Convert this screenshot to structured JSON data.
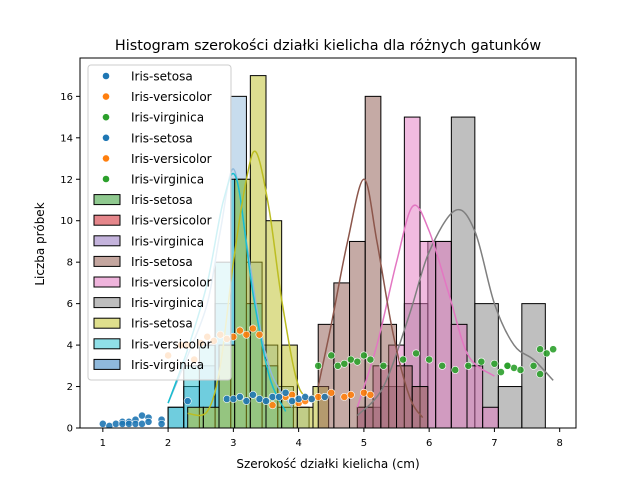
{
  "chart_data": {
    "type": "bar",
    "title": "Histogram szerokości działki kielicha dla różnych gatunków",
    "xlabel": "Szerokość działki kielicha (cm)",
    "ylabel": "Liczba próbek",
    "xlim": [
      0.65,
      8.25
    ],
    "ylim": [
      0,
      17.85
    ],
    "xticks": [
      1,
      2,
      3,
      4,
      5,
      6,
      7,
      8
    ],
    "yticks": [
      0,
      2,
      4,
      6,
      8,
      10,
      12,
      14,
      16
    ],
    "grid": false,
    "legend_position": "top-left",
    "legend": [
      {
        "label": "Iris-setosa",
        "kind": "point",
        "color": "#1f77b4"
      },
      {
        "label": "Iris-versicolor",
        "kind": "point",
        "color": "#ff7f0e"
      },
      {
        "label": "Iris-virginica",
        "kind": "point",
        "color": "#2ca02c"
      },
      {
        "label": "Iris-setosa",
        "kind": "point",
        "color": "#1f77b4"
      },
      {
        "label": "Iris-versicolor",
        "kind": "point",
        "color": "#ff7f0e"
      },
      {
        "label": "Iris-virginica",
        "kind": "point",
        "color": "#2ca02c"
      },
      {
        "label": "Iris-setosa",
        "kind": "patch",
        "color": "#8fc98f"
      },
      {
        "label": "Iris-versicolor",
        "kind": "patch",
        "color": "#e5868b"
      },
      {
        "label": "Iris-virginica",
        "kind": "patch",
        "color": "#c4b3dc"
      },
      {
        "label": "Iris-setosa",
        "kind": "patch",
        "color": "#c4a69f"
      },
      {
        "label": "Iris-versicolor",
        "kind": "patch",
        "color": "#efb4dc"
      },
      {
        "label": "Iris-virginica",
        "kind": "patch",
        "color": "#bdbdbd"
      },
      {
        "label": "Iris-setosa",
        "kind": "patch",
        "color": "#dfdf8d"
      },
      {
        "label": "Iris-versicolor",
        "kind": "patch",
        "color": "#8fdfe8"
      },
      {
        "label": "Iris-virginica",
        "kind": "patch",
        "color": "#8fb9dc"
      }
    ],
    "histograms": [
      {
        "name": "Iris-virginica",
        "color": "#8fb9dc",
        "bin_width": 0.24,
        "bins": [
          {
            "x0": 2.0,
            "count": 1
          },
          {
            "x0": 2.24,
            "count": 2
          },
          {
            "x0": 2.48,
            "count": 3
          },
          {
            "x0": 2.72,
            "count": 6
          },
          {
            "x0": 2.96,
            "count": 16
          },
          {
            "x0": 3.2,
            "count": 8
          },
          {
            "x0": 3.44,
            "count": 4
          },
          {
            "x0": 3.68,
            "count": 2
          },
          {
            "x0": 3.92,
            "count": 1
          }
        ],
        "kde": [
          [
            2.0,
            1.2
          ],
          [
            2.3,
            3.5
          ],
          [
            2.6,
            6.0
          ],
          [
            2.8,
            9.5
          ],
          [
            3.0,
            12.5
          ],
          [
            3.2,
            9.0
          ],
          [
            3.4,
            5.0
          ],
          [
            3.6,
            2.5
          ],
          [
            3.9,
            1.0
          ]
        ]
      },
      {
        "name": "Iris-versicolor",
        "color": "#17becf",
        "bin_width": 0.24,
        "bins": [
          {
            "x0": 2.0,
            "count": 1
          },
          {
            "x0": 2.24,
            "count": 3
          },
          {
            "x0": 2.48,
            "count": 4
          },
          {
            "x0": 2.72,
            "count": 8
          },
          {
            "x0": 2.96,
            "count": 12
          },
          {
            "x0": 3.2,
            "count": 6
          },
          {
            "x0": 3.44,
            "count": 3
          },
          {
            "x0": 3.68,
            "count": 1
          }
        ],
        "kde": [
          [
            2.0,
            1.2
          ],
          [
            2.3,
            3.8
          ],
          [
            2.6,
            7.0
          ],
          [
            2.85,
            11.0
          ],
          [
            3.05,
            12.0
          ],
          [
            3.3,
            6.5
          ],
          [
            3.55,
            2.5
          ],
          [
            3.8,
            0.8
          ]
        ]
      },
      {
        "name": "Iris-setosa",
        "color": "#bcbd22",
        "bin_width": 0.24,
        "bins": [
          {
            "x0": 2.3,
            "count": 1
          },
          {
            "x0": 2.54,
            "count": 1
          },
          {
            "x0": 2.78,
            "count": 4
          },
          {
            "x0": 3.02,
            "count": 12
          },
          {
            "x0": 3.26,
            "count": 17
          },
          {
            "x0": 3.5,
            "count": 10
          },
          {
            "x0": 3.74,
            "count": 4
          },
          {
            "x0": 3.98,
            "count": 1
          },
          {
            "x0": 4.22,
            "count": 2
          }
        ],
        "kde": [
          [
            2.3,
            0.7
          ],
          [
            2.6,
            0.8
          ],
          [
            2.8,
            3.0
          ],
          [
            3.0,
            8.0
          ],
          [
            3.2,
            12.0
          ],
          [
            3.35,
            13.3
          ],
          [
            3.55,
            10.5
          ],
          [
            3.75,
            6.0
          ],
          [
            4.0,
            2.0
          ],
          [
            4.25,
            1.5
          ]
        ]
      },
      {
        "name": "Iris-virginica",
        "color": "#7f7f7f",
        "bin_width": 0.36,
        "bins": [
          {
            "x0": 4.9,
            "count": 1
          },
          {
            "x0": 5.26,
            "count": 2
          },
          {
            "x0": 5.62,
            "count": 6
          },
          {
            "x0": 5.98,
            "count": 9
          },
          {
            "x0": 6.34,
            "count": 15
          },
          {
            "x0": 6.7,
            "count": 6
          },
          {
            "x0": 7.06,
            "count": 2
          },
          {
            "x0": 7.42,
            "count": 6
          }
        ],
        "kde": [
          [
            4.9,
            0.6
          ],
          [
            5.3,
            2.0
          ],
          [
            5.7,
            5.5
          ],
          [
            6.0,
            8.5
          ],
          [
            6.4,
            10.5
          ],
          [
            6.7,
            9.5
          ],
          [
            7.0,
            6.0
          ],
          [
            7.3,
            4.0
          ],
          [
            7.6,
            3.3
          ],
          [
            7.9,
            2.3
          ]
        ]
      },
      {
        "name": "Iris-versicolor",
        "color": "#e377c2",
        "bin_width": 0.24,
        "bins": [
          {
            "x0": 4.9,
            "count": 1
          },
          {
            "x0": 5.14,
            "count": 3
          },
          {
            "x0": 5.38,
            "count": 4
          },
          {
            "x0": 5.62,
            "count": 15
          },
          {
            "x0": 5.86,
            "count": 9
          },
          {
            "x0": 6.1,
            "count": 9
          },
          {
            "x0": 6.34,
            "count": 5
          },
          {
            "x0": 6.58,
            "count": 3
          },
          {
            "x0": 6.82,
            "count": 1
          }
        ],
        "kde": [
          [
            4.9,
            1.0
          ],
          [
            5.2,
            4.0
          ],
          [
            5.5,
            8.0
          ],
          [
            5.75,
            10.7
          ],
          [
            6.0,
            9.5
          ],
          [
            6.3,
            6.5
          ],
          [
            6.6,
            3.5
          ],
          [
            7.0,
            2.5
          ]
        ]
      },
      {
        "name": "Iris-setosa",
        "color": "#8c564b",
        "bin_width": 0.24,
        "bins": [
          {
            "x0": 4.3,
            "count": 5
          },
          {
            "x0": 4.54,
            "count": 7
          },
          {
            "x0": 4.78,
            "count": 9
          },
          {
            "x0": 5.02,
            "count": 16
          },
          {
            "x0": 5.26,
            "count": 5
          },
          {
            "x0": 5.5,
            "count": 3
          },
          {
            "x0": 5.74,
            "count": 2
          }
        ],
        "kde": [
          [
            4.3,
            2.0
          ],
          [
            4.5,
            5.0
          ],
          [
            4.75,
            9.0
          ],
          [
            5.0,
            12.0
          ],
          [
            5.2,
            9.0
          ],
          [
            5.45,
            4.5
          ],
          [
            5.7,
            1.5
          ],
          [
            5.9,
            0.5
          ]
        ]
      }
    ],
    "scatter": [
      {
        "name": "Iris-setosa",
        "color": "#1f77b4",
        "points": [
          [
            1.0,
            0.2
          ],
          [
            1.1,
            0.1
          ],
          [
            1.2,
            0.2
          ],
          [
            1.3,
            0.3
          ],
          [
            1.3,
            0.2
          ],
          [
            1.4,
            0.3
          ],
          [
            1.4,
            0.2
          ],
          [
            1.5,
            0.4
          ],
          [
            1.5,
            0.2
          ],
          [
            1.6,
            0.6
          ],
          [
            1.6,
            0.2
          ],
          [
            1.7,
            0.5
          ],
          [
            1.7,
            0.3
          ],
          [
            1.9,
            0.4
          ],
          [
            1.9,
            0.2
          ]
        ]
      },
      {
        "name": "Iris-versicolor",
        "color": "#ff7f0e",
        "points": [
          [
            3.6,
            1.1
          ],
          [
            3.8,
            1.5
          ],
          [
            3.9,
            1.6
          ],
          [
            4.0,
            1.2
          ],
          [
            4.1,
            1.3
          ],
          [
            4.2,
            1.4
          ],
          [
            4.3,
            1.5
          ],
          [
            4.4,
            1.5
          ],
          [
            4.5,
            1.7
          ],
          [
            4.7,
            1.5
          ],
          [
            4.8,
            1.6
          ],
          [
            5.0,
            1.7
          ],
          [
            5.1,
            1.6
          ]
        ]
      },
      {
        "name": "Iris-virginica",
        "color": "#2ca02c",
        "points": [
          [
            7.1,
            2.7
          ],
          [
            7.2,
            3.0
          ],
          [
            7.3,
            2.9
          ],
          [
            7.4,
            2.8
          ],
          [
            7.6,
            3.0
          ],
          [
            7.7,
            3.8
          ],
          [
            7.7,
            2.6
          ],
          [
            7.8,
            3.6
          ],
          [
            7.9,
            3.8
          ]
        ]
      },
      {
        "name": "Iris-setosa",
        "color": "#1f77b4",
        "points": [
          [
            2.3,
            1.3
          ],
          [
            2.9,
            1.4
          ],
          [
            3.0,
            1.4
          ],
          [
            3.1,
            1.5
          ],
          [
            3.2,
            1.3
          ],
          [
            3.3,
            1.6
          ],
          [
            3.4,
            1.4
          ],
          [
            3.5,
            1.3
          ],
          [
            3.6,
            1.5
          ],
          [
            3.7,
            1.5
          ],
          [
            3.8,
            1.7
          ],
          [
            3.9,
            1.3
          ],
          [
            4.0,
            1.4
          ],
          [
            4.1,
            1.5
          ],
          [
            4.2,
            1.4
          ],
          [
            4.4,
            1.5
          ]
        ]
      },
      {
        "name": "Iris-versicolor",
        "color": "#ff7f0e",
        "points": [
          [
            2.0,
            3.5
          ],
          [
            2.2,
            4.0
          ],
          [
            2.3,
            4.0
          ],
          [
            2.4,
            3.3
          ],
          [
            2.5,
            4.1
          ],
          [
            2.6,
            4.4
          ],
          [
            2.7,
            4.2
          ],
          [
            2.8,
            4.5
          ],
          [
            2.9,
            4.3
          ],
          [
            3.0,
            4.4
          ],
          [
            3.1,
            4.7
          ],
          [
            3.2,
            4.5
          ],
          [
            3.3,
            4.8
          ],
          [
            3.4,
            4.5
          ]
        ]
      },
      {
        "name": "Iris-virginica",
        "color": "#2ca02c",
        "points": [
          [
            4.3,
            3.0
          ],
          [
            4.5,
            3.5
          ],
          [
            4.6,
            3.0
          ],
          [
            4.7,
            3.1
          ],
          [
            4.8,
            3.3
          ],
          [
            4.9,
            3.2
          ],
          [
            5.0,
            3.5
          ],
          [
            5.1,
            3.3
          ],
          [
            5.3,
            3.0
          ],
          [
            5.6,
            3.3
          ],
          [
            5.8,
            3.6
          ],
          [
            6.0,
            3.3
          ],
          [
            6.2,
            3.0
          ],
          [
            6.4,
            2.8
          ],
          [
            6.6,
            3.0
          ],
          [
            6.8,
            3.2
          ],
          [
            7.0,
            3.1
          ],
          [
            7.2,
            3.0
          ]
        ]
      }
    ]
  }
}
